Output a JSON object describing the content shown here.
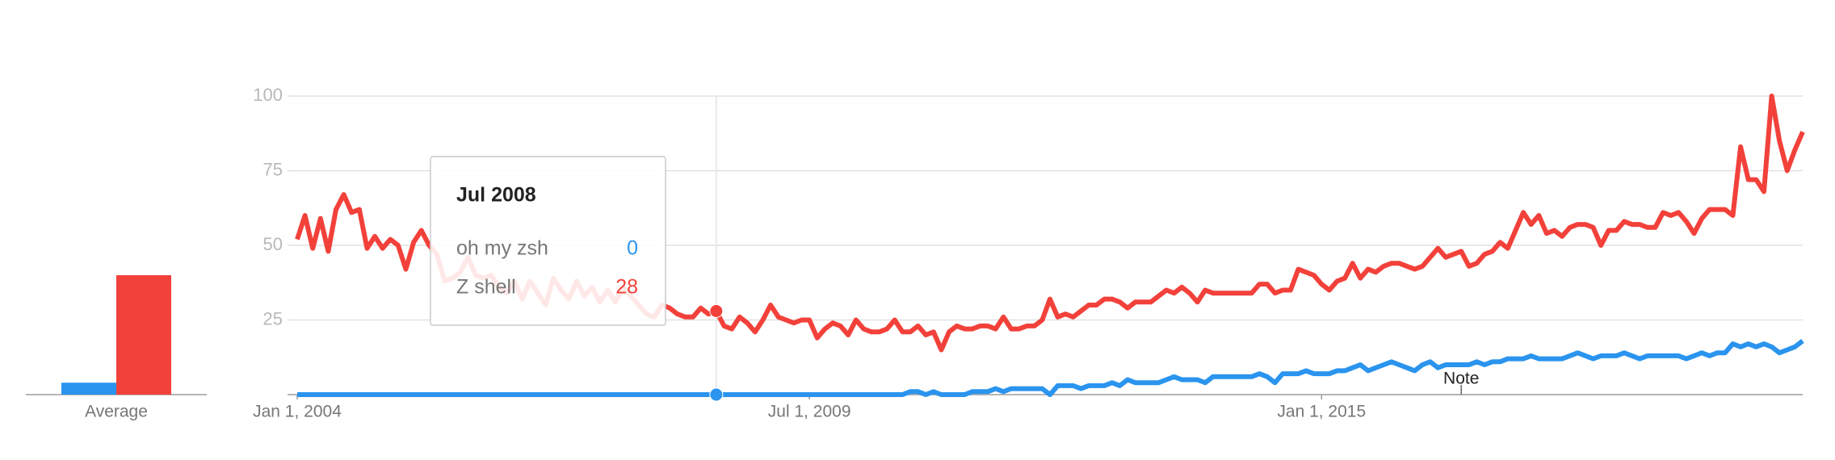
{
  "chart_data": {
    "type": "line",
    "x": [
      "2004-01",
      "2004-02",
      "2004-03",
      "2004-04",
      "2004-05",
      "2004-06",
      "2004-07",
      "2004-08",
      "2004-09",
      "2004-10",
      "2004-11",
      "2004-12",
      "2005-01",
      "2005-02",
      "2005-03",
      "2005-04",
      "2005-05",
      "2005-06",
      "2005-07",
      "2005-08",
      "2005-09",
      "2005-10",
      "2005-11",
      "2005-12",
      "2006-01",
      "2006-02",
      "2006-03",
      "2006-04",
      "2006-05",
      "2006-06",
      "2006-07",
      "2006-08",
      "2006-09",
      "2006-10",
      "2006-11",
      "2006-12",
      "2007-01",
      "2007-02",
      "2007-03",
      "2007-04",
      "2007-05",
      "2007-06",
      "2007-07",
      "2007-08",
      "2007-09",
      "2007-10",
      "2007-11",
      "2007-12",
      "2008-01",
      "2008-02",
      "2008-03",
      "2008-04",
      "2008-05",
      "2008-06",
      "2008-07",
      "2008-08",
      "2008-09",
      "2008-10",
      "2008-11",
      "2008-12",
      "2009-01",
      "2009-02",
      "2009-03",
      "2009-04",
      "2009-05",
      "2009-06",
      "2009-07",
      "2009-08",
      "2009-09",
      "2009-10",
      "2009-11",
      "2009-12",
      "2010-01",
      "2010-02",
      "2010-03",
      "2010-04",
      "2010-05",
      "2010-06",
      "2010-07",
      "2010-08",
      "2010-09",
      "2010-10",
      "2010-11",
      "2010-12",
      "2011-01",
      "2011-02",
      "2011-03",
      "2011-04",
      "2011-05",
      "2011-06",
      "2011-07",
      "2011-08",
      "2011-09",
      "2011-10",
      "2011-11",
      "2011-12",
      "2012-01",
      "2012-02",
      "2012-03",
      "2012-04",
      "2012-05",
      "2012-06",
      "2012-07",
      "2012-08",
      "2012-09",
      "2012-10",
      "2012-11",
      "2012-12",
      "2013-01",
      "2013-02",
      "2013-03",
      "2013-04",
      "2013-05",
      "2013-06",
      "2013-07",
      "2013-08",
      "2013-09",
      "2013-10",
      "2013-11",
      "2013-12",
      "2014-01",
      "2014-02",
      "2014-03",
      "2014-04",
      "2014-05",
      "2014-06",
      "2014-07",
      "2014-08",
      "2014-09",
      "2014-10",
      "2014-11",
      "2014-12",
      "2015-01",
      "2015-02",
      "2015-03",
      "2015-04",
      "2015-05",
      "2015-06",
      "2015-07",
      "2015-08",
      "2015-09",
      "2015-10",
      "2015-11",
      "2015-12",
      "2016-01",
      "2016-02",
      "2016-03",
      "2016-04",
      "2016-05",
      "2016-06",
      "2016-07",
      "2016-08",
      "2016-09",
      "2016-10",
      "2016-11",
      "2016-12",
      "2017-01",
      "2017-02",
      "2017-03",
      "2017-04",
      "2017-05",
      "2017-06",
      "2017-07",
      "2017-08",
      "2017-09",
      "2017-10",
      "2017-11",
      "2017-12",
      "2018-01",
      "2018-02",
      "2018-03",
      "2018-04",
      "2018-05",
      "2018-06",
      "2018-07",
      "2018-08",
      "2018-09",
      "2018-10",
      "2018-11",
      "2018-12",
      "2019-01",
      "2019-02",
      "2019-03",
      "2019-04",
      "2019-05",
      "2019-06",
      "2019-07",
      "2019-08",
      "2019-09",
      "2019-10",
      "2019-11",
      "2019-12",
      "2020-01",
      "2020-02",
      "2020-03"
    ],
    "series": [
      {
        "name": "oh my zsh",
        "color": "#2a94ee",
        "average": 4,
        "values": [
          0,
          0,
          0,
          0,
          0,
          0,
          0,
          0,
          0,
          0,
          0,
          0,
          0,
          0,
          0,
          0,
          0,
          0,
          0,
          0,
          0,
          0,
          0,
          0,
          0,
          0,
          0,
          0,
          0,
          0,
          0,
          0,
          0,
          0,
          0,
          0,
          0,
          0,
          0,
          0,
          0,
          0,
          0,
          0,
          0,
          0,
          0,
          0,
          0,
          0,
          0,
          0,
          0,
          0,
          0,
          0,
          0,
          0,
          0,
          0,
          0,
          0,
          0,
          0,
          0,
          0,
          0,
          0,
          0,
          0,
          0,
          0,
          0,
          0,
          0,
          0,
          0,
          0,
          0,
          1,
          1,
          0,
          1,
          0,
          0,
          0,
          0,
          1,
          1,
          1,
          2,
          1,
          2,
          2,
          2,
          2,
          2,
          0,
          3,
          3,
          3,
          2,
          3,
          3,
          3,
          4,
          3,
          5,
          4,
          4,
          4,
          4,
          5,
          6,
          5,
          5,
          5,
          4,
          6,
          6,
          6,
          6,
          6,
          6,
          7,
          6,
          4,
          7,
          7,
          7,
          8,
          7,
          7,
          7,
          8,
          8,
          9,
          10,
          8,
          9,
          10,
          11,
          10,
          9,
          8,
          10,
          11,
          9,
          10,
          10,
          10,
          10,
          11,
          10,
          11,
          11,
          12,
          12,
          12,
          13,
          12,
          12,
          12,
          12,
          13,
          14,
          13,
          12,
          13,
          13,
          13,
          14,
          13,
          12,
          13,
          13,
          13,
          13,
          13,
          12,
          13,
          14,
          13,
          14,
          14,
          17,
          16,
          17,
          16,
          17,
          16,
          14,
          15,
          16,
          18
        ]
      },
      {
        "name": "Z shell",
        "color": "#f2413a",
        "average": 40,
        "values": [
          52,
          60,
          49,
          59,
          48,
          62,
          67,
          61,
          62,
          49,
          53,
          49,
          52,
          50,
          42,
          51,
          55,
          50,
          47,
          38,
          39,
          41,
          46,
          40,
          39,
          40,
          36,
          34,
          38,
          32,
          38,
          34,
          30,
          39,
          35,
          32,
          38,
          33,
          36,
          31,
          35,
          31,
          36,
          33,
          30,
          27,
          26,
          30,
          29,
          27,
          26,
          26,
          29,
          27,
          28,
          23,
          22,
          26,
          24,
          21,
          25,
          30,
          26,
          25,
          24,
          25,
          25,
          19,
          22,
          24,
          23,
          20,
          25,
          22,
          21,
          21,
          22,
          25,
          21,
          21,
          23,
          20,
          21,
          15,
          21,
          23,
          22,
          22,
          23,
          23,
          22,
          26,
          22,
          22,
          23,
          23,
          25,
          32,
          26,
          27,
          26,
          28,
          30,
          30,
          32,
          32,
          31,
          29,
          31,
          31,
          31,
          33,
          35,
          34,
          36,
          34,
          31,
          35,
          34,
          34,
          34,
          34,
          34,
          34,
          37,
          37,
          34,
          35,
          35,
          42,
          41,
          40,
          37,
          35,
          38,
          39,
          44,
          39,
          42,
          41,
          43,
          44,
          44,
          43,
          42,
          43,
          46,
          49,
          46,
          47,
          48,
          43,
          44,
          47,
          48,
          51,
          49,
          55,
          61,
          57,
          60,
          54,
          55,
          53,
          56,
          57,
          57,
          56,
          50,
          55,
          55,
          58,
          57,
          57,
          56,
          56,
          61,
          60,
          61,
          58,
          54,
          59,
          62,
          62,
          62,
          60,
          83,
          72,
          72,
          68,
          100,
          85,
          75,
          82,
          88
        ]
      }
    ],
    "xlim": [
      "2004-01",
      "2020-03"
    ],
    "xticks": [
      {
        "value": "2004-01",
        "label": "Jan 1, 2004"
      },
      {
        "value": "2009-07",
        "label": "Jul 1, 2009"
      },
      {
        "value": "2015-01",
        "label": "Jan 1, 2015"
      }
    ],
    "ylim": [
      0,
      100
    ],
    "yticks": [
      25,
      50,
      75,
      100
    ],
    "grid": true,
    "average_label": "Average",
    "annotation": {
      "x": "2016-07",
      "text": "Note"
    },
    "tooltip": {
      "title": "Jul 2008",
      "values": [
        0,
        28
      ]
    }
  }
}
